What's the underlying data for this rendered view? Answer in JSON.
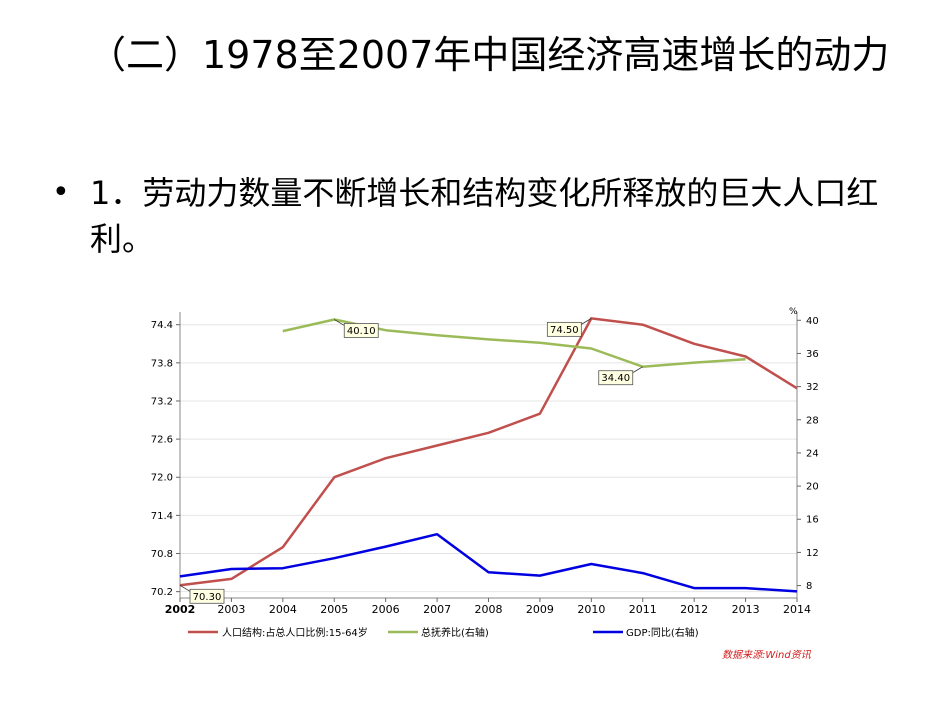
{
  "slide": {
    "title": "（二）1978至2007年中国经济高速增长的动力",
    "bullet_marker": "•",
    "bullet_text": "1．劳动力数量不断增长和结构变化所释放的巨大人口红利。"
  },
  "chart_data": {
    "type": "line",
    "x": [
      "2002",
      "2003",
      "2004",
      "2005",
      "2006",
      "2007",
      "2008",
      "2009",
      "2010",
      "2011",
      "2012",
      "2013",
      "2014"
    ],
    "left_axis": {
      "ticks": [
        "70.2",
        "70.8",
        "71.4",
        "72.0",
        "72.6",
        "73.2",
        "73.8",
        "74.4"
      ],
      "range": [
        70.1,
        74.6
      ]
    },
    "right_axis": {
      "unit": "%",
      "ticks": [
        "8",
        "12",
        "16",
        "20",
        "24",
        "28",
        "32",
        "36",
        "40"
      ],
      "range": [
        6.5,
        41
      ]
    },
    "series": [
      {
        "name": "人口结构:占总人口比例:15-64岁",
        "axis": "left",
        "color": "#c0504d",
        "values": [
          70.3,
          70.4,
          70.9,
          72.0,
          72.3,
          72.5,
          72.7,
          73.0,
          74.5,
          74.4,
          74.1,
          73.9,
          73.4
        ]
      },
      {
        "name": "总抚养比(右轴)",
        "axis": "right",
        "color": "#9bbb59",
        "values": [
          null,
          null,
          38.7,
          40.1,
          38.8,
          38.2,
          37.7,
          37.3,
          36.6,
          34.4,
          34.9,
          35.3,
          null
        ]
      },
      {
        "name": "GDP:同比(右轴)",
        "axis": "right",
        "color": "#0000e0",
        "values": [
          9.1,
          10.0,
          10.1,
          11.3,
          12.7,
          14.2,
          9.6,
          9.2,
          10.6,
          9.5,
          7.7,
          7.7,
          7.3
        ]
      }
    ],
    "callouts": [
      {
        "label": "70.30"
      },
      {
        "label": "40.10"
      },
      {
        "label": "74.50"
      },
      {
        "label": "34.40"
      }
    ],
    "grid": "horizontal",
    "legend_position": "bottom",
    "source": "数据来源:Wind资讯"
  }
}
